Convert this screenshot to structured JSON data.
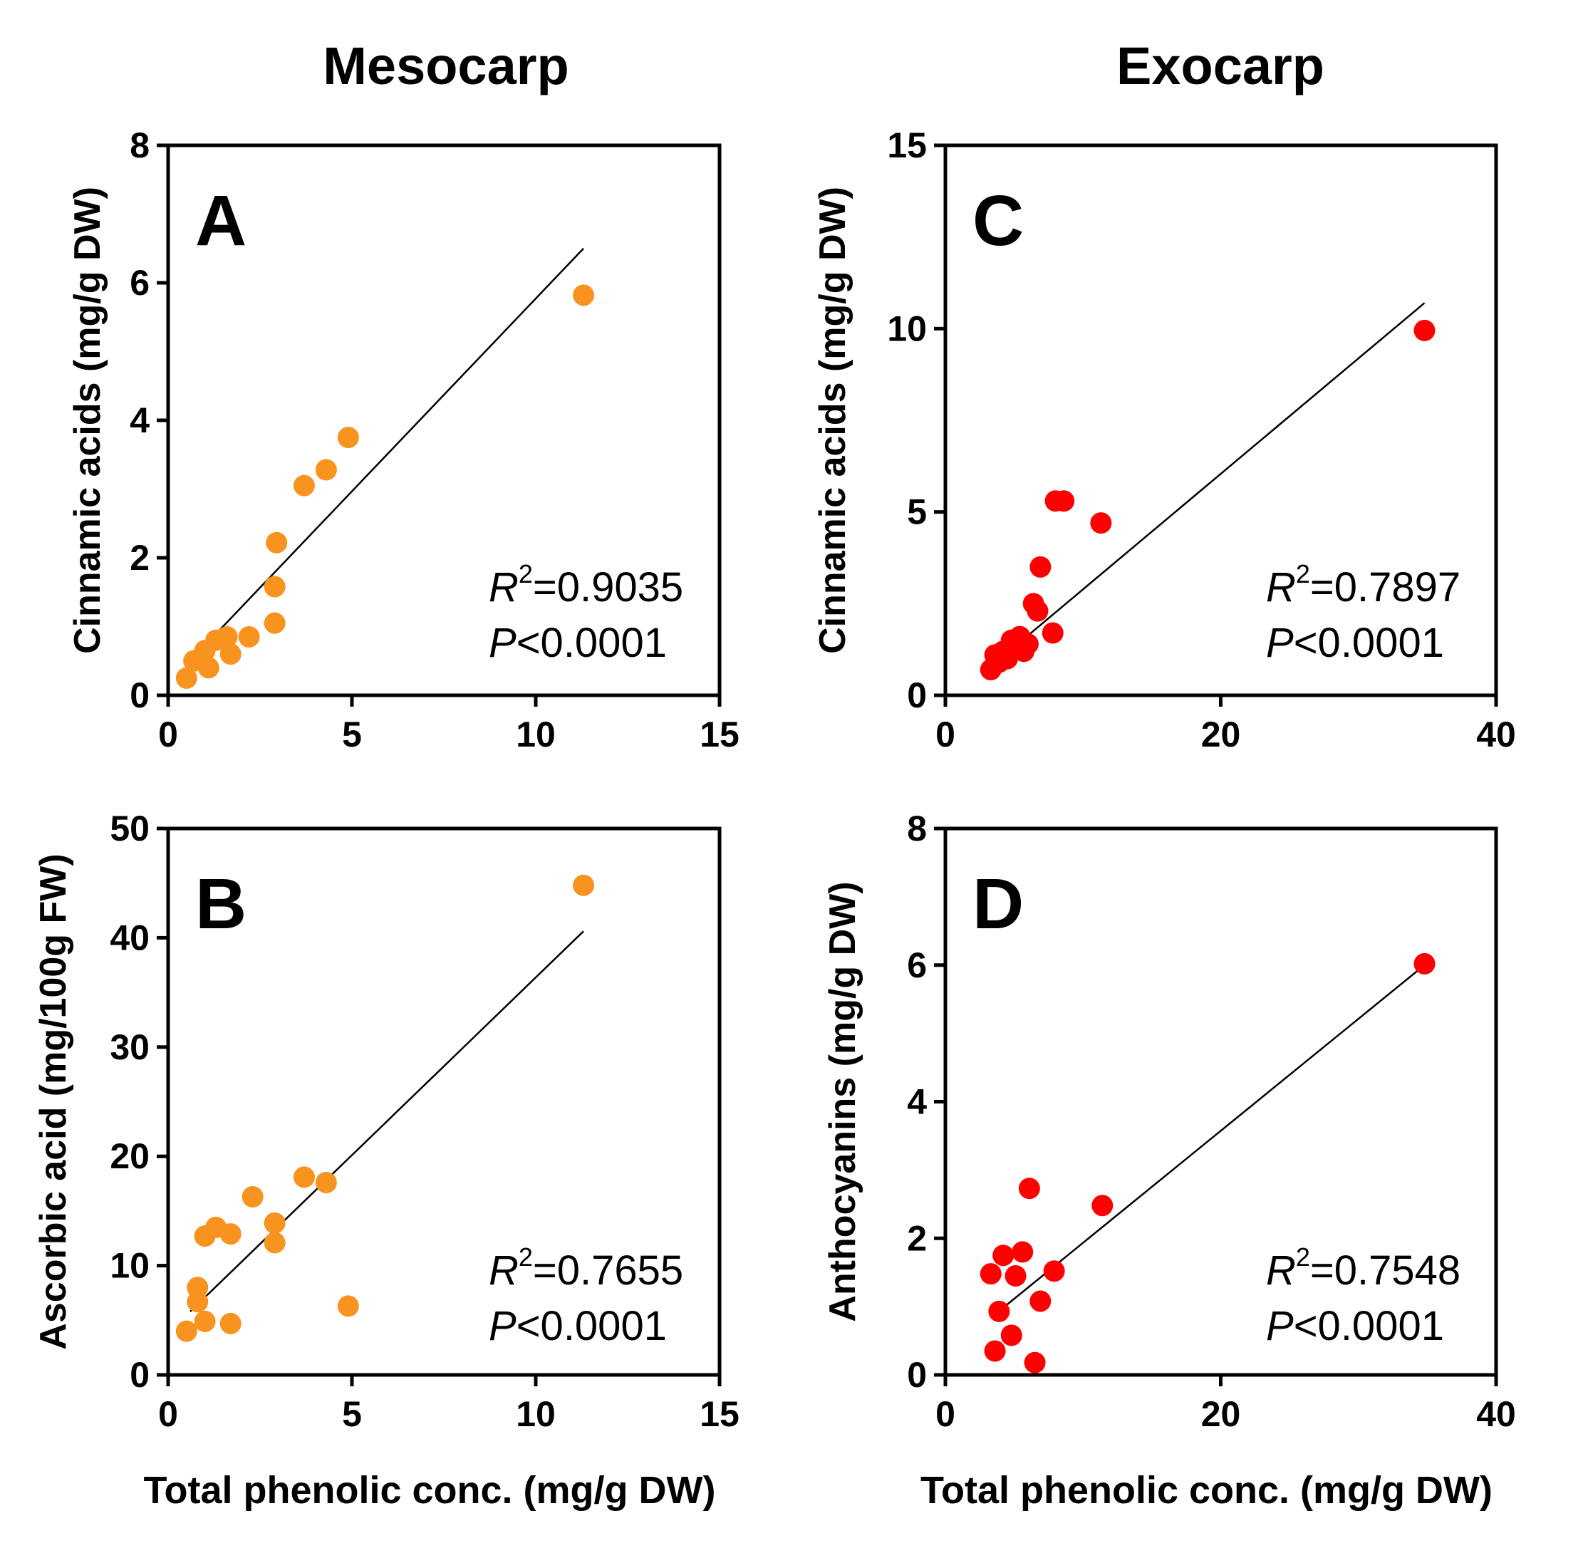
{
  "column_titles": {
    "left": "Mesocarp",
    "right": "Exocarp"
  },
  "shared_xlabel": "Total phenolic conc. (mg/g DW)",
  "colors": {
    "mesocarp": "#F7931E",
    "exocarp": "#FF0000",
    "axis": "#000000",
    "fit": "#000000"
  },
  "chart_data": [
    {
      "panel": "A",
      "type": "scatter",
      "column": "Mesocarp",
      "ylabel": "Cinnamic acids (mg/g DW)",
      "xlabel": "",
      "xlim": [
        0,
        15
      ],
      "ylim": [
        0,
        8
      ],
      "xticks": [
        0,
        5,
        10,
        15
      ],
      "yticks": [
        0,
        2,
        4,
        6,
        8
      ],
      "stat_r2": "=0.9035",
      "stat_p": "<0.0001",
      "fit_line": {
        "x": [
          0.6,
          11.3
        ],
        "y": [
          0.5,
          6.5
        ]
      },
      "points": [
        [
          0.5,
          0.25
        ],
        [
          0.7,
          0.5
        ],
        [
          0.9,
          0.55
        ],
        [
          1.0,
          0.65
        ],
        [
          1.1,
          0.4
        ],
        [
          1.3,
          0.8
        ],
        [
          1.6,
          0.85
        ],
        [
          1.7,
          0.6
        ],
        [
          2.2,
          0.85
        ],
        [
          2.9,
          1.05
        ],
        [
          2.9,
          1.58
        ],
        [
          2.95,
          2.22
        ],
        [
          3.7,
          3.05
        ],
        [
          4.3,
          3.28
        ],
        [
          4.9,
          3.75
        ],
        [
          11.3,
          5.82
        ]
      ]
    },
    {
      "panel": "B",
      "type": "scatter",
      "column": "Mesocarp",
      "ylabel": "Ascorbic acid (mg/100g FW)",
      "xlabel": "Total phenolic conc. (mg/g DW)",
      "xlim": [
        0,
        15
      ],
      "ylim": [
        0,
        50
      ],
      "xticks": [
        0,
        5,
        10,
        15
      ],
      "yticks": [
        0,
        10,
        20,
        30,
        40,
        50
      ],
      "stat_r2": "=0.7655",
      "stat_p": "<0.0001",
      "fit_line": {
        "x": [
          0.6,
          11.3
        ],
        "y": [
          5.8,
          40.6
        ]
      },
      "points": [
        [
          0.5,
          4.0
        ],
        [
          0.8,
          8.0
        ],
        [
          0.8,
          6.7
        ],
        [
          1.0,
          4.9
        ],
        [
          1.0,
          12.7
        ],
        [
          1.3,
          13.5
        ],
        [
          1.7,
          12.9
        ],
        [
          1.7,
          4.7
        ],
        [
          2.3,
          16.3
        ],
        [
          2.9,
          13.9
        ],
        [
          2.9,
          12.1
        ],
        [
          3.7,
          18.1
        ],
        [
          4.3,
          17.6
        ],
        [
          4.9,
          6.3
        ],
        [
          11.3,
          44.8
        ]
      ]
    },
    {
      "panel": "C",
      "type": "scatter",
      "column": "Exocarp",
      "ylabel": "Cinnamic acids (mg/g DW)",
      "xlabel": "",
      "xlim": [
        0,
        40
      ],
      "ylim": [
        0,
        15
      ],
      "xticks": [
        0,
        20,
        40
      ],
      "yticks": [
        0,
        5,
        10,
        15
      ],
      "stat_r2": "=0.7897",
      "stat_p": "<0.0001",
      "fit_line": {
        "x": [
          3.2,
          34.8
        ],
        "y": [
          0.75,
          10.7
        ]
      },
      "points": [
        [
          3.3,
          0.7
        ],
        [
          3.6,
          1.1
        ],
        [
          3.9,
          0.9
        ],
        [
          4.2,
          1.2
        ],
        [
          4.5,
          1.0
        ],
        [
          4.8,
          1.5
        ],
        [
          5.1,
          1.3
        ],
        [
          5.4,
          1.6
        ],
        [
          5.7,
          1.2
        ],
        [
          6.0,
          1.4
        ],
        [
          6.4,
          2.5
        ],
        [
          6.7,
          2.3
        ],
        [
          6.9,
          3.5
        ],
        [
          7.8,
          1.7
        ],
        [
          8.0,
          5.3
        ],
        [
          8.6,
          5.3
        ],
        [
          11.3,
          4.7
        ],
        [
          34.8,
          9.95
        ]
      ]
    },
    {
      "panel": "D",
      "type": "scatter",
      "column": "Exocarp",
      "ylabel": "Anthocyanins (mg/g DW)",
      "xlabel": "Total phenolic conc. (mg/g DW)",
      "xlim": [
        0,
        40
      ],
      "ylim": [
        0,
        8
      ],
      "xticks": [
        0,
        20,
        40
      ],
      "yticks": [
        0,
        2,
        4,
        6,
        8
      ],
      "stat_r2": "=0.7548",
      "stat_p": "<0.0001",
      "fit_line": {
        "x": [
          4.3,
          34.8
        ],
        "y": [
          1.0,
          6.0
        ]
      },
      "points": [
        [
          3.3,
          1.48
        ],
        [
          3.6,
          0.35
        ],
        [
          3.9,
          0.93
        ],
        [
          4.2,
          1.75
        ],
        [
          4.8,
          0.58
        ],
        [
          5.1,
          1.45
        ],
        [
          5.6,
          1.8
        ],
        [
          6.1,
          2.73
        ],
        [
          6.5,
          0.18
        ],
        [
          6.9,
          1.08
        ],
        [
          7.9,
          1.52
        ],
        [
          11.4,
          2.48
        ],
        [
          34.8,
          6.02
        ]
      ]
    }
  ]
}
